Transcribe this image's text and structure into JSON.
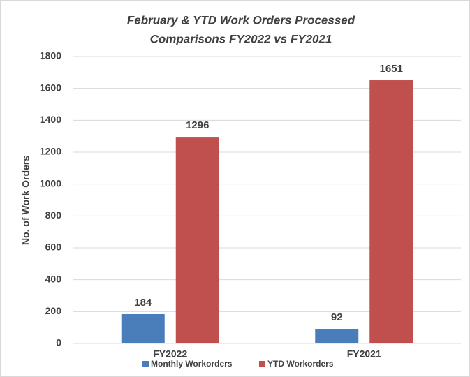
{
  "chart_data": {
    "type": "bar",
    "title": [
      "February & YTD Work Orders Processed",
      "Comparisons FY2022 vs FY2021"
    ],
    "y_label": "No. of Work Orders",
    "categories": [
      "FY2022",
      "FY2021"
    ],
    "series": [
      {
        "name": "Monthly Workorders",
        "color": "#4a7ebb",
        "values": [
          184,
          92
        ]
      },
      {
        "name": "YTD Workorders",
        "color": "#c0504d",
        "values": [
          1296,
          1651
        ]
      }
    ],
    "ylim": [
      0,
      1800
    ],
    "yticks": [
      0,
      200,
      400,
      600,
      800,
      1000,
      1200,
      1400,
      1600,
      1800
    ],
    "grid": true,
    "legend": "bottom"
  }
}
